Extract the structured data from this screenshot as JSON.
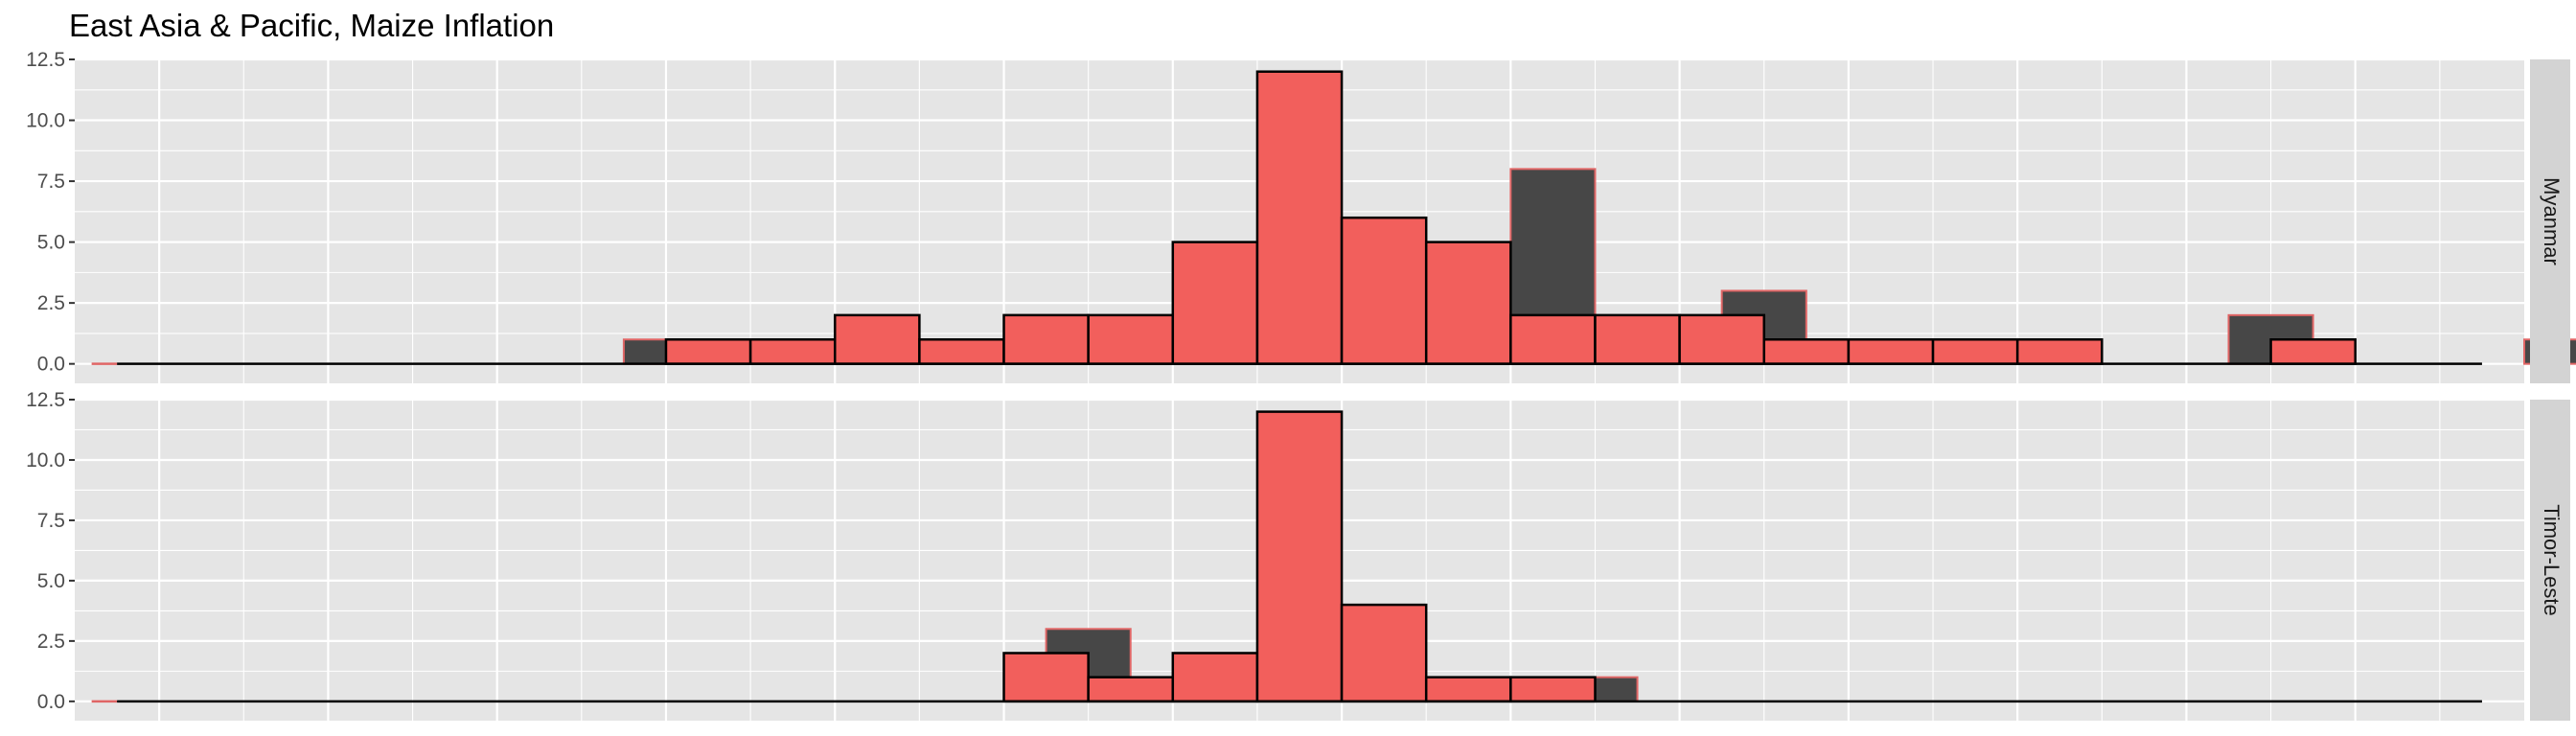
{
  "title": "East Asia & Pacific, Maize Inflation",
  "chart_data": {
    "type": "bar",
    "title": "East Asia & Pacific, Maize Inflation",
    "xlabel": "",
    "ylabel": "",
    "ylim": [
      -0.8,
      12.5
    ],
    "y_ticks": [
      0.0,
      2.5,
      5.0,
      7.5,
      10.0,
      12.5
    ],
    "y_tick_labels": [
      "0.0",
      "2.5",
      "5.0",
      "7.5",
      "10.0",
      "12.5"
    ],
    "grid": true,
    "colors": {
      "red_fill": "#F25F5C",
      "dark_fill": "#474747",
      "outline": "#000000",
      "red_outline": "#E06666",
      "panel_bg": "#E5E5E5",
      "grid": "#FFFFFF",
      "strip_bg": "#D3D3D3"
    },
    "panels": [
      {
        "strip": "Myanmar",
        "background_series": [
          {
            "x": 2,
            "y": 0
          },
          {
            "x": 7,
            "y": 1
          },
          {
            "x": 11.5,
            "y": 2
          },
          {
            "x": 14,
            "y": 3
          },
          {
            "x": 17.5,
            "y": 8
          },
          {
            "x": 20,
            "y": 3
          },
          {
            "x": 23.5,
            "y": 1
          },
          {
            "x": 26,
            "y": 2
          },
          {
            "x": 29.5,
            "y": 1
          }
        ],
        "bins": [
          {
            "x": 7.5,
            "y": 1
          },
          {
            "x": 8.5,
            "y": 1
          },
          {
            "x": 9.5,
            "y": 2
          },
          {
            "x": 10.5,
            "y": 1
          },
          {
            "x": 11.5,
            "y": 2
          },
          {
            "x": 12.5,
            "y": 2
          },
          {
            "x": 13.5,
            "y": 5
          },
          {
            "x": 14.5,
            "y": 12
          },
          {
            "x": 15.5,
            "y": 6
          },
          {
            "x": 16.5,
            "y": 5
          },
          {
            "x": 17.5,
            "y": 2
          },
          {
            "x": 18.5,
            "y": 2
          },
          {
            "x": 19.5,
            "y": 2
          },
          {
            "x": 20.5,
            "y": 1
          },
          {
            "x": 21.5,
            "y": 1
          },
          {
            "x": 22.5,
            "y": 1
          },
          {
            "x": 23.5,
            "y": 1
          },
          {
            "x": 26.5,
            "y": 1
          }
        ]
      },
      {
        "strip": "Timor-Leste",
        "background_series": [
          {
            "x": 2,
            "y": 0
          },
          {
            "x": 12,
            "y": 3
          },
          {
            "x": 18,
            "y": 1
          }
        ],
        "bins": [
          {
            "x": 11.5,
            "y": 2
          },
          {
            "x": 12.5,
            "y": 1
          },
          {
            "x": 13.5,
            "y": 2
          },
          {
            "x": 14.5,
            "y": 12
          },
          {
            "x": 15.5,
            "y": 4
          },
          {
            "x": 16.5,
            "y": 1
          },
          {
            "x": 17.5,
            "y": 1
          }
        ]
      }
    ]
  }
}
